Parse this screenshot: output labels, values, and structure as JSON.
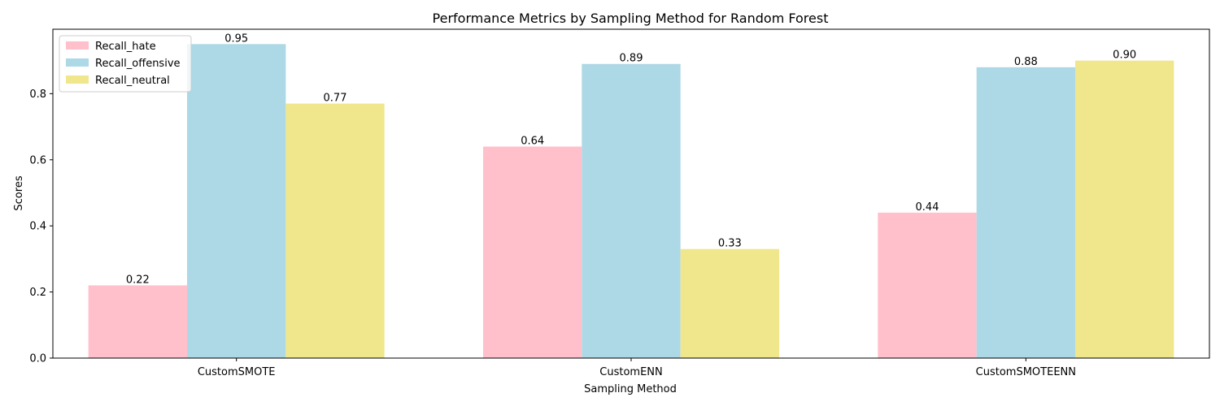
{
  "chart_data": {
    "type": "bar",
    "title": "Performance Metrics by Sampling Method for Random Forest",
    "xlabel": "Sampling Method",
    "ylabel": "Scores",
    "categories": [
      "CustomSMOTE",
      "CustomENN",
      "CustomSMOTEENN"
    ],
    "series": [
      {
        "name": "Recall_hate",
        "color": "#FFC0CB",
        "values": [
          0.22,
          0.64,
          0.44
        ],
        "labels": [
          "0.22",
          "0.64",
          "0.44"
        ]
      },
      {
        "name": "Recall_offensive",
        "color": "#ADD8E6",
        "values": [
          0.95,
          0.89,
          0.88
        ],
        "labels": [
          "0.95",
          "0.89",
          "0.88"
        ]
      },
      {
        "name": "Recall_neutral",
        "color": "#F0E68C",
        "values": [
          0.77,
          0.33,
          0.9
        ],
        "labels": [
          "0.77",
          "0.33",
          "0.90"
        ]
      }
    ],
    "yticks": [
      {
        "value": 0.0,
        "label": "0.0"
      },
      {
        "value": 0.2,
        "label": "0.2"
      },
      {
        "value": 0.4,
        "label": "0.4"
      },
      {
        "value": 0.6,
        "label": "0.6"
      },
      {
        "value": 0.8,
        "label": "0.8"
      }
    ],
    "ylim": [
      0,
      0.995
    ],
    "grid": false,
    "legend_position": "upper-left"
  }
}
